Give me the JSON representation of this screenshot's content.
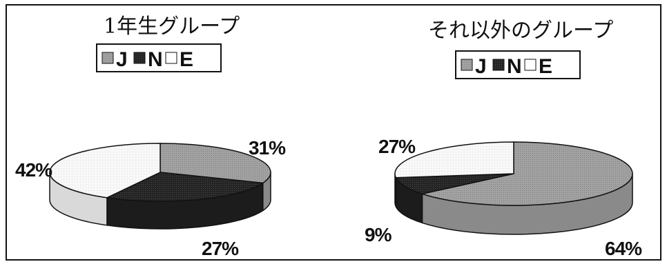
{
  "chart_data": [
    {
      "type": "pie",
      "title": "1年生グループ",
      "legend": [
        "J",
        "N",
        "E"
      ],
      "categories": [
        "J",
        "N",
        "E"
      ],
      "values": [
        31,
        27,
        42
      ],
      "labels": [
        "31%",
        "27%",
        "42%"
      ],
      "legend_position": "top"
    },
    {
      "type": "pie",
      "title": "それ以外のグループ",
      "legend": [
        "J",
        "N",
        "E"
      ],
      "categories": [
        "J",
        "N",
        "E"
      ],
      "values": [
        64,
        9,
        27
      ],
      "labels": [
        "64%",
        "9%",
        "27%"
      ],
      "legend_position": "top"
    }
  ],
  "colors": {
    "J": "#9c9c9c",
    "N": "#2a2a2a",
    "E": "#f7f7f7",
    "outline": "#111111"
  }
}
